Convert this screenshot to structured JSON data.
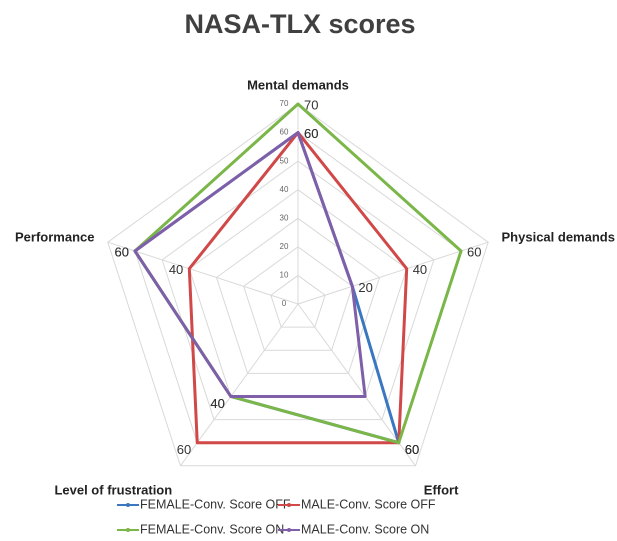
{
  "chart_data": {
    "type": "radar",
    "title": "NASA-TLX scores",
    "axes": [
      "Mental demands",
      "Physical demands",
      "Effort",
      "Level of frustration",
      "Performance"
    ],
    "rlim": [
      0,
      70
    ],
    "rticks": [
      0,
      10,
      20,
      30,
      40,
      50,
      60,
      70
    ],
    "grid": true,
    "legend": "bottom",
    "series": [
      {
        "name": "FEMALE-Conv. Score OFF",
        "color": "#3a77c0",
        "values": [
          60,
          20,
          60,
          40,
          60
        ],
        "show_labels": true
      },
      {
        "name": "MALE-Conv. Score OFF",
        "color": "#d04848",
        "values": [
          60,
          40,
          60,
          60,
          40
        ],
        "show_labels": true
      },
      {
        "name": "FEMALE-Conv. Score ON",
        "color": "#7ab648",
        "values": [
          70,
          60,
          60,
          40,
          60
        ],
        "show_labels": true
      },
      {
        "name": "MALE-Conv. Score ON",
        "color": "#7f5fa8",
        "values": [
          60,
          20,
          40,
          40,
          60
        ],
        "show_labels": false
      }
    ]
  }
}
